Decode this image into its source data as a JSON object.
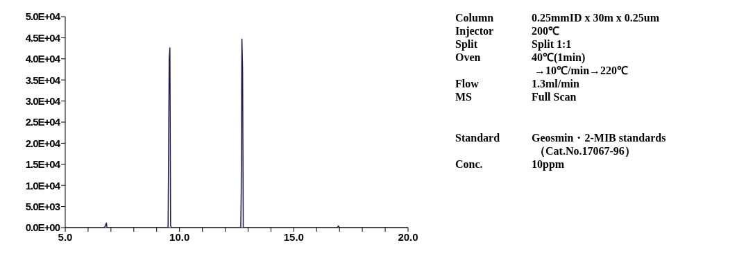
{
  "chart_data": {
    "type": "line",
    "x": [
      5.0,
      6.7,
      6.76,
      6.8,
      6.83,
      9.5,
      9.55,
      9.58,
      9.61,
      9.65,
      12.68,
      12.7,
      12.73,
      12.76,
      12.79,
      16.9,
      16.95,
      17.0,
      20.0
    ],
    "series": [
      {
        "color": "#1a1a4e",
        "values": [
          0,
          0,
          400,
          1100,
          0,
          0,
          40100,
          42600,
          500,
          0,
          0,
          8400,
          44700,
          37800,
          0,
          0,
          400,
          0,
          0
        ]
      }
    ],
    "xlim": [
      5,
      20
    ],
    "xticks": [
      {
        "value": 5,
        "label": "5.0"
      },
      {
        "value": 6,
        "label": null
      },
      {
        "value": 7,
        "label": null
      },
      {
        "value": 8,
        "label": null
      },
      {
        "value": 9,
        "label": null
      },
      {
        "value": 10,
        "label": "10.0"
      },
      {
        "value": 11,
        "label": null
      },
      {
        "value": 12,
        "label": null
      },
      {
        "value": 13,
        "label": null
      },
      {
        "value": 14,
        "label": null
      },
      {
        "value": 15,
        "label": "15.0"
      },
      {
        "value": 16,
        "label": null
      },
      {
        "value": 17,
        "label": null
      },
      {
        "value": 18,
        "label": null
      },
      {
        "value": 19,
        "label": null
      },
      {
        "value": 20,
        "label": "20.0"
      }
    ],
    "ylim": [
      0,
      50000
    ],
    "yticks": [
      {
        "value": 0,
        "label": "0.0E+00"
      },
      {
        "value": 5000,
        "label": "5.0E+03"
      },
      {
        "value": 10000,
        "label": "1.0E+04"
      },
      {
        "value": 15000,
        "label": "1.5E+04"
      },
      {
        "value": 20000,
        "label": "2.0E+04"
      },
      {
        "value": 25000,
        "label": "2.5E+04"
      },
      {
        "value": 30000,
        "label": "3.0E+04"
      },
      {
        "value": 35000,
        "label": "3.5E+04"
      },
      {
        "value": 40000,
        "label": "4.0E+04"
      },
      {
        "value": 45000,
        "label": "4.5E+04"
      },
      {
        "value": 50000,
        "label": "5.0E+04"
      }
    ],
    "grid": false,
    "marker": "none",
    "line_style": "solid",
    "annotations": [
      "Column",
      "0.25mmID x 30m x 0.25um",
      "Injector",
      "200℃",
      "Split",
      "Split 1:1",
      "Oven",
      "40℃(1min)\n →10℃/min→220℃",
      "Flow",
      "1.3ml/min",
      "MS",
      "Full Scan",
      "Standard",
      "Geosmin・2-MIB standards\n （Cat.No.17067-96）",
      "Conc.",
      "10ppm"
    ]
  }
}
